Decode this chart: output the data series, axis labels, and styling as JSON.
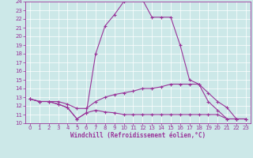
{
  "xlabel": "Windchill (Refroidissement éolien,°C)",
  "xlim": [
    -0.5,
    23.5
  ],
  "ylim": [
    10,
    24
  ],
  "bg_color": "#cce8e8",
  "grid_color": "#ffffff",
  "line_color": "#993399",
  "line1_y": [
    12.8,
    12.5,
    12.5,
    12.5,
    12.2,
    11.7,
    11.7,
    12.5,
    13.0,
    13.3,
    13.5,
    13.7,
    14.0,
    14.0,
    14.2,
    14.5,
    14.5,
    14.5,
    14.5,
    12.5,
    11.5,
    10.5,
    10.5,
    10.5
  ],
  "line2_y": [
    12.8,
    12.5,
    12.5,
    12.2,
    11.8,
    10.5,
    11.2,
    18.0,
    21.2,
    22.5,
    24.0,
    24.2,
    24.2,
    22.2,
    22.2,
    22.2,
    19.0,
    15.0,
    14.5,
    13.5,
    12.5,
    11.8,
    10.5,
    10.5
  ],
  "line3_y": [
    12.8,
    12.5,
    12.5,
    12.2,
    11.8,
    10.5,
    11.2,
    11.5,
    11.3,
    11.2,
    11.0,
    11.0,
    11.0,
    11.0,
    11.0,
    11.0,
    11.0,
    11.0,
    11.0,
    11.0,
    11.0,
    10.5,
    10.5,
    10.5
  ],
  "marker": "+",
  "markersize": 3,
  "linewidth": 0.8,
  "tick_fontsize": 5,
  "label_fontsize": 5.5
}
